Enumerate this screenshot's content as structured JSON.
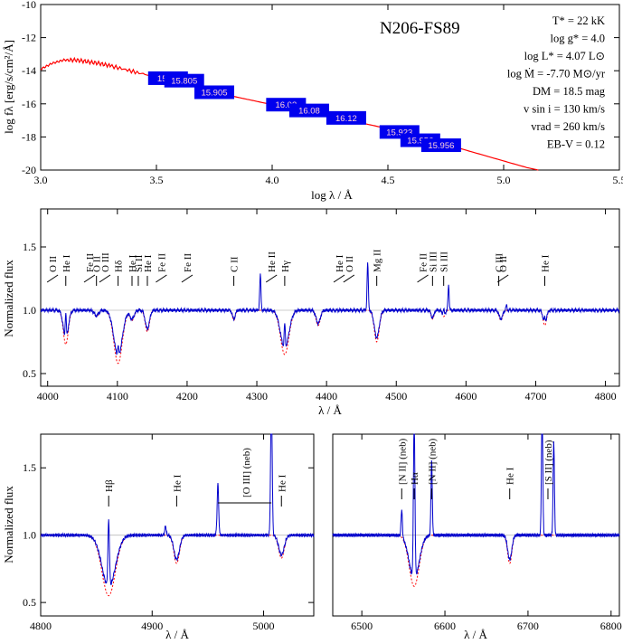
{
  "chart_data": [
    {
      "type": "line",
      "title": "N206-FS89",
      "xlabel": "log λ / Å",
      "ylabel": "log fλ [erg/s/cm²/Å]",
      "xlim": [
        3.0,
        5.5
      ],
      "ylim": [
        -20,
        -10
      ],
      "xticks": [
        3.0,
        3.5,
        4.0,
        4.5,
        5.0,
        5.5
      ],
      "yticks": [
        -20,
        -18,
        -16,
        -14,
        -12,
        -10
      ],
      "xtick_labels": [
        "3.0",
        "3.5",
        "4.0",
        "4.5",
        "5.0",
        "5.5"
      ],
      "ytick_labels": [
        "-20",
        "-18",
        "-16",
        "-14",
        "-12",
        "-10"
      ],
      "parameters": [
        "T* = 22 kK",
        "log g* = 4.0",
        "log L* = 4.07 L⊙",
        "log Ṁ = -7.70 M⊙/yr",
        "DM = 18.5 mag",
        "v sin i = 130 km/s",
        "vrad = 260 km/s",
        "EB-V = 0.12"
      ],
      "photometry": [
        {
          "x": 3.55,
          "y": -14.45,
          "label": "15.73"
        },
        {
          "x": 3.62,
          "y": -14.6,
          "label": "15.805"
        },
        {
          "x": 3.75,
          "y": -15.3,
          "label": "15.905"
        },
        {
          "x": 4.06,
          "y": -16.05,
          "label": "16.03"
        },
        {
          "x": 4.16,
          "y": -16.4,
          "label": "16.08"
        },
        {
          "x": 4.32,
          "y": -16.85,
          "label": "16.12"
        },
        {
          "x": 4.55,
          "y": -17.7,
          "label": "15.923"
        },
        {
          "x": 4.64,
          "y": -18.2,
          "label": "15.956"
        },
        {
          "x": 4.73,
          "y": -18.5,
          "label": "15.956"
        }
      ],
      "series": [
        {
          "color": "#ff0000",
          "x": [
            3.0,
            3.05,
            3.1,
            3.15,
            3.2,
            3.25,
            3.3,
            3.4,
            3.5,
            3.6,
            3.7,
            3.8,
            3.9,
            4.0,
            4.1,
            4.2,
            4.3,
            4.4,
            4.5,
            4.6,
            4.7,
            4.8,
            4.9,
            5.0,
            5.1,
            5.15
          ],
          "y": [
            -13.9,
            -13.55,
            -13.35,
            -13.35,
            -13.45,
            -13.55,
            -13.7,
            -14.05,
            -14.4,
            -14.75,
            -15.1,
            -15.45,
            -15.75,
            -16.05,
            -16.35,
            -16.6,
            -16.9,
            -17.2,
            -17.5,
            -17.85,
            -18.25,
            -18.65,
            -19.05,
            -19.45,
            -19.85,
            -20.0
          ]
        }
      ]
    },
    {
      "type": "line",
      "xlabel": "λ / Å",
      "ylabel": "Normalized flux",
      "xlim": [
        3990,
        4820
      ],
      "ylim": [
        0.4,
        1.8
      ],
      "xticks": [
        4000,
        4100,
        4200,
        4300,
        4400,
        4500,
        4600,
        4700,
        4800
      ],
      "yticks": [
        0.5,
        1.0,
        1.5
      ],
      "xtick_labels": [
        "4000",
        "4100",
        "4200",
        "4300",
        "4400",
        "4500",
        "4600",
        "4700",
        "4800"
      ],
      "ytick_labels": [
        "0.5",
        "1.0",
        "1.5"
      ],
      "line_ids": [
        {
          "wl": 4026,
          "label": "He I"
        },
        {
          "wl": 4070,
          "label": "O II"
        },
        {
          "wl": 4101,
          "label": "Hδ"
        },
        {
          "wl": 4121,
          "label": "He I"
        },
        {
          "wl": 4130,
          "label": "Si II"
        },
        {
          "wl": 4143,
          "label": "He I"
        },
        {
          "wl": 4267,
          "label": "C II"
        },
        {
          "wl": 4340,
          "label": "Hγ"
        },
        {
          "wl": 4472,
          "label": "Mg II"
        },
        {
          "wl": 4552,
          "label": "Si III"
        },
        {
          "wl": 4568,
          "label": "Si III"
        },
        {
          "wl": 4647,
          "label": "C III"
        },
        {
          "wl": 4713,
          "label": "He I"
        }
      ],
      "group_labels": [
        {
          "wl": 4007,
          "label": "O II"
        },
        {
          "wl": 4060,
          "label": "Fe II"
        },
        {
          "wl": 4082,
          "label": "O III"
        },
        {
          "wl": 4163,
          "label": "Fe II"
        },
        {
          "wl": 4200,
          "label": "Fe II"
        },
        {
          "wl": 4321,
          "label": "He II"
        },
        {
          "wl": 4418,
          "label": "He I"
        },
        {
          "wl": 4432,
          "label": "O II"
        },
        {
          "wl": 4538,
          "label": "Fe II"
        },
        {
          "wl": 4653,
          "label": "O II"
        }
      ],
      "absorptions": [
        {
          "wl": 4026,
          "depth": 0.27,
          "width": 3.5
        },
        {
          "wl": 4070,
          "depth": 0.05,
          "width": 3
        },
        {
          "wl": 4101,
          "depth": 0.42,
          "width": 6
        },
        {
          "wl": 4121,
          "depth": 0.08,
          "width": 3
        },
        {
          "wl": 4143,
          "depth": 0.17,
          "width": 3
        },
        {
          "wl": 4267,
          "depth": 0.08,
          "width": 2
        },
        {
          "wl": 4340,
          "depth": 0.35,
          "width": 6
        },
        {
          "wl": 4388,
          "depth": 0.12,
          "width": 3
        },
        {
          "wl": 4472,
          "depth": 0.25,
          "width": 3.5
        },
        {
          "wl": 4552,
          "depth": 0.07,
          "width": 2
        },
        {
          "wl": 4568,
          "depth": 0.05,
          "width": 2
        },
        {
          "wl": 4650,
          "depth": 0.08,
          "width": 2.5
        },
        {
          "wl": 4713,
          "depth": 0.12,
          "width": 2.5
        }
      ],
      "emissions": [
        {
          "wl": 4026,
          "height": 0.22,
          "width": 0.8
        },
        {
          "wl": 4101,
          "height": 0.08,
          "width": 0.8
        },
        {
          "wl": 4305,
          "height": 0.28,
          "width": 0.9
        },
        {
          "wl": 4340,
          "height": 0.2,
          "width": 0.8
        },
        {
          "wl": 4459,
          "height": 0.38,
          "width": 0.9
        },
        {
          "wl": 4568,
          "height": 0.05,
          "width": 0.8
        },
        {
          "wl": 4575,
          "height": 0.2,
          "width": 0.8
        },
        {
          "wl": 4658,
          "height": 0.04,
          "width": 0.8
        },
        {
          "wl": 4713,
          "height": 0.05,
          "width": 0.8
        }
      ]
    },
    {
      "type": "line",
      "xlabel": "λ / Å",
      "ylabel": "Normalized flux",
      "xlim": [
        4800,
        5045
      ],
      "ylim": [
        0.4,
        1.75
      ],
      "xticks": [
        4800,
        4900,
        5000
      ],
      "yticks": [
        0.5,
        1.0,
        1.5
      ],
      "xtick_labels": [
        "4800",
        "4900",
        "5000"
      ],
      "ytick_labels": [
        "0.5",
        "1.0",
        "1.5"
      ],
      "line_ids": [
        {
          "wl": 4861,
          "label": "Hβ"
        },
        {
          "wl": 4922,
          "label": "He I"
        },
        {
          "wl": 5016,
          "label": "He I"
        }
      ],
      "group_labels": [
        {
          "wl": 4984,
          "label": "[O III] (neb)"
        }
      ],
      "absorptions": [
        {
          "wl": 4861,
          "depth": 0.45,
          "width": 6
        },
        {
          "wl": 4922,
          "depth": 0.21,
          "width": 2.5
        },
        {
          "wl": 5016,
          "depth": 0.17,
          "width": 2.5
        }
      ],
      "emissions": [
        {
          "wl": 4861,
          "height": 0.5,
          "width": 0.7
        },
        {
          "wl": 4912,
          "height": 0.07,
          "width": 0.6
        },
        {
          "wl": 4959,
          "height": 0.38,
          "width": 0.7
        },
        {
          "wl": 5007,
          "height": 1.0,
          "width": 0.7
        }
      ]
    },
    {
      "type": "line",
      "xlabel": "λ / Å",
      "xlim": [
        6465,
        6810
      ],
      "ylim": [
        0.4,
        1.75
      ],
      "xticks": [
        6500,
        6600,
        6700,
        6800
      ],
      "xtick_labels": [
        "6500",
        "6600",
        "6700",
        "6800"
      ],
      "line_ids": [
        {
          "wl": 6548,
          "label": "[N II] (neb)"
        },
        {
          "wl": 6563,
          "label": "Hα"
        },
        {
          "wl": 6678,
          "label": "He I"
        },
        {
          "wl": 6584,
          "label": "[N II] (neb)"
        },
        {
          "wl": 6724,
          "label": "[S II] (neb)"
        }
      ],
      "absorptions": [
        {
          "wl": 6563,
          "depth": 0.38,
          "width": 6
        },
        {
          "wl": 6678,
          "depth": 0.21,
          "width": 2.5
        }
      ],
      "emissions": [
        {
          "wl": 6548,
          "height": 0.2,
          "width": 0.8
        },
        {
          "wl": 6563,
          "height": 1.2,
          "width": 0.9
        },
        {
          "wl": 6584,
          "height": 0.55,
          "width": 0.8
        },
        {
          "wl": 6717,
          "height": 1.0,
          "width": 0.8
        },
        {
          "wl": 6731,
          "height": 0.7,
          "width": 0.8
        }
      ]
    }
  ]
}
